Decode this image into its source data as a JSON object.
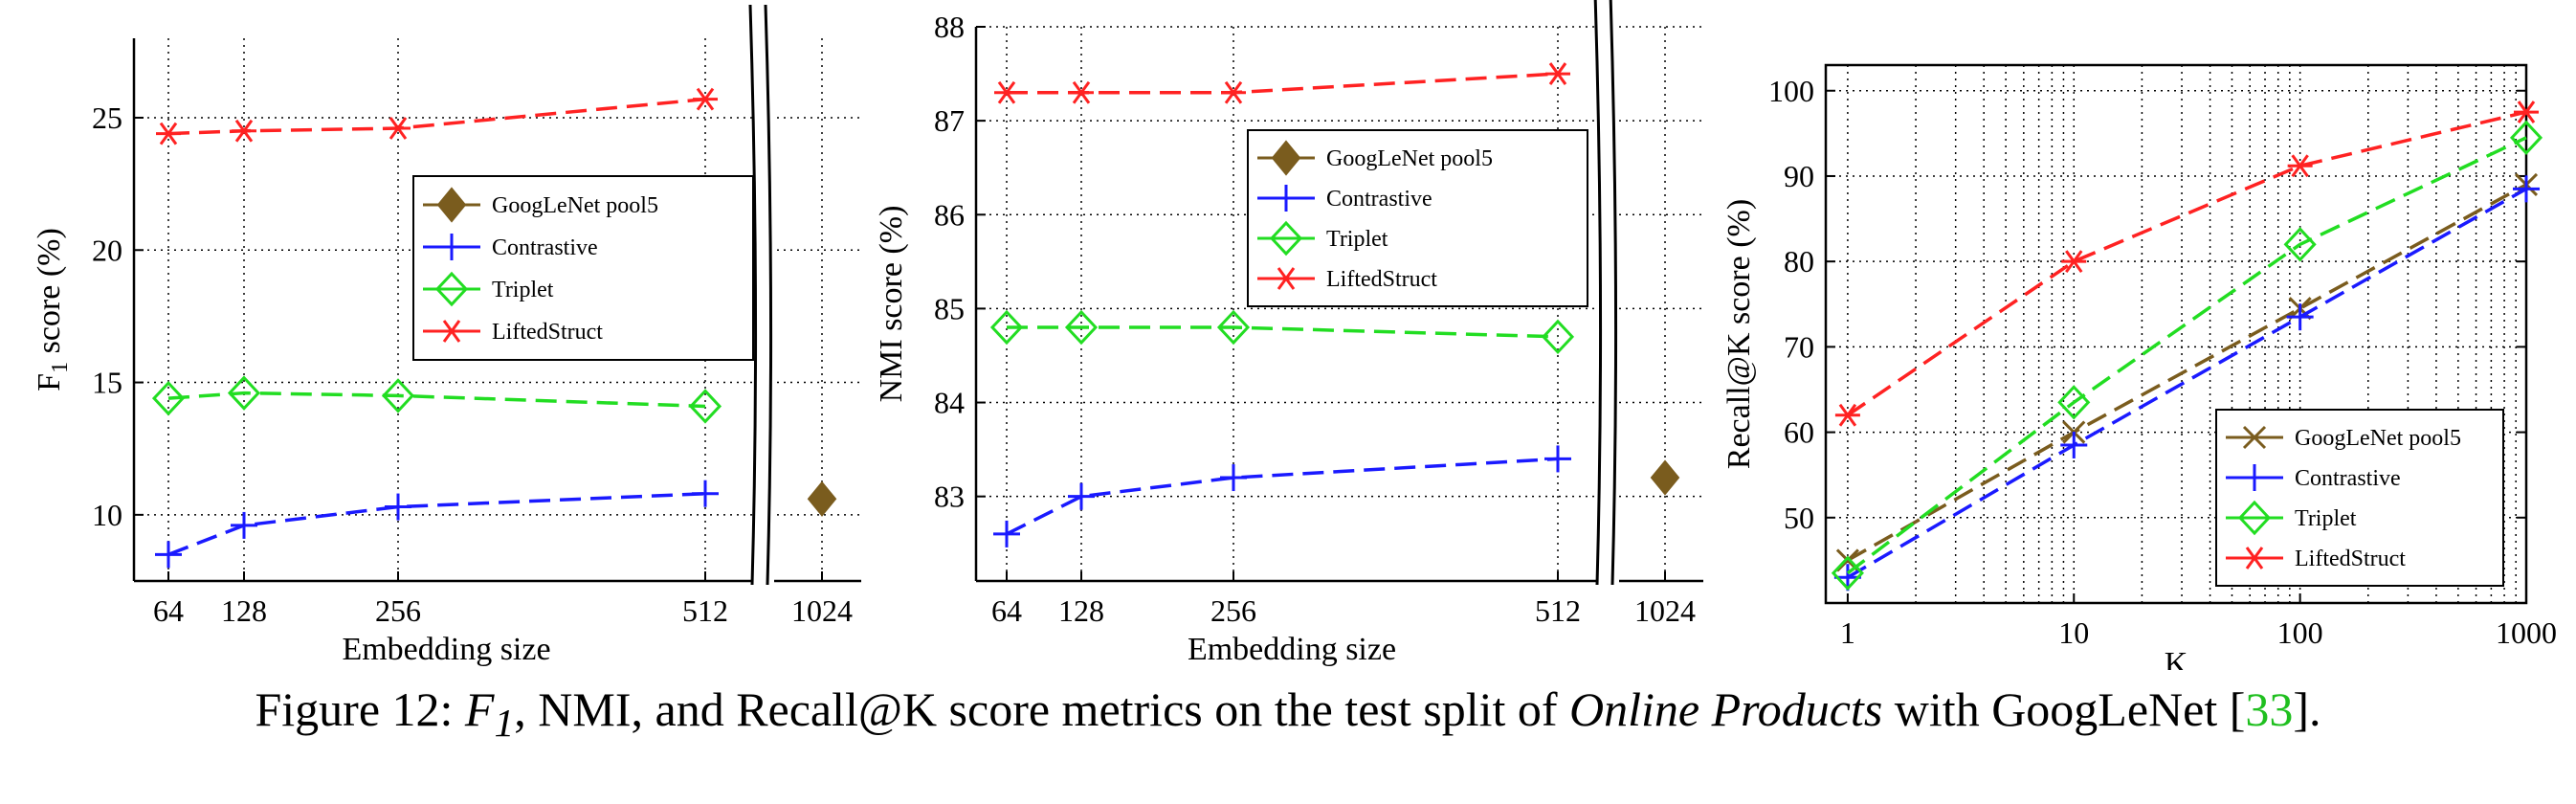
{
  "chart_data": [
    {
      "type": "line",
      "xlabel": "Embedding size",
      "ylabel": "F",
      "ylabel_sub": "1",
      "ylabel_rest": " score (%)",
      "x_ticks": [
        "64",
        "128",
        "256",
        "512",
        "1024"
      ],
      "y_ticks": [
        "10",
        "15",
        "20",
        "25"
      ],
      "ylim": [
        7.5,
        28
      ],
      "grid": true,
      "axis_break": "between 512 and 1024",
      "legend_position": "center-right",
      "series": [
        {
          "name": "GoogLeNet pool5",
          "color": "#7a5c1e",
          "marker": "diamond-filled",
          "x": [
            "1024"
          ],
          "values": [
            10.6
          ]
        },
        {
          "name": "Contrastive",
          "color": "#1a1aff",
          "marker": "plus",
          "x": [
            "64",
            "128",
            "256",
            "512"
          ],
          "values": [
            8.5,
            9.6,
            10.3,
            10.8
          ]
        },
        {
          "name": "Triplet",
          "color": "#22dd22",
          "marker": "diamond-open",
          "x": [
            "64",
            "128",
            "256",
            "512"
          ],
          "values": [
            14.4,
            14.6,
            14.5,
            14.1
          ]
        },
        {
          "name": "LiftedStruct",
          "color": "#ff2222",
          "marker": "asterisk",
          "x": [
            "64",
            "128",
            "256",
            "512"
          ],
          "values": [
            24.4,
            24.5,
            24.6,
            25.7
          ]
        }
      ]
    },
    {
      "type": "line",
      "xlabel": "Embedding size",
      "ylabel": "NMI score (%)",
      "x_ticks": [
        "64",
        "128",
        "256",
        "512",
        "1024"
      ],
      "y_ticks": [
        "83",
        "84",
        "85",
        "86",
        "87",
        "88"
      ],
      "ylim": [
        82.1,
        88
      ],
      "grid": true,
      "axis_break": "between 512 and 1024",
      "legend_position": "top-right",
      "series": [
        {
          "name": "GoogLeNet pool5",
          "color": "#7a5c1e",
          "marker": "diamond-filled",
          "x": [
            "1024"
          ],
          "values": [
            83.2
          ]
        },
        {
          "name": "Contrastive",
          "color": "#1a1aff",
          "marker": "plus",
          "x": [
            "64",
            "128",
            "256",
            "512"
          ],
          "values": [
            82.6,
            83.0,
            83.2,
            83.4
          ]
        },
        {
          "name": "Triplet",
          "color": "#22dd22",
          "marker": "diamond-open",
          "x": [
            "64",
            "128",
            "256",
            "512"
          ],
          "values": [
            84.8,
            84.8,
            84.8,
            84.7
          ]
        },
        {
          "name": "LiftedStruct",
          "color": "#ff2222",
          "marker": "asterisk",
          "x": [
            "64",
            "128",
            "256",
            "512"
          ],
          "values": [
            87.3,
            87.3,
            87.3,
            87.5
          ]
        }
      ]
    },
    {
      "type": "line",
      "xlabel": "K",
      "ylabel": "Recall@K score (%)",
      "x_scale": "log",
      "x_ticks": [
        "1",
        "10",
        "100",
        "1000"
      ],
      "y_ticks": [
        "50",
        "60",
        "70",
        "80",
        "90",
        "100"
      ],
      "xlim": [
        0.8,
        1000
      ],
      "ylim": [
        40,
        103
      ],
      "grid": true,
      "legend_position": "bottom-right",
      "series": [
        {
          "name": "GoogLeNet pool5",
          "color": "#7a5c1e",
          "marker": "x",
          "x": [
            1,
            10,
            100,
            1000
          ],
          "values": [
            45,
            60,
            74.5,
            89
          ]
        },
        {
          "name": "Contrastive",
          "color": "#1a1aff",
          "marker": "plus",
          "x": [
            1,
            10,
            100,
            1000
          ],
          "values": [
            43,
            58.5,
            73.5,
            88.5
          ]
        },
        {
          "name": "Triplet",
          "color": "#22dd22",
          "marker": "diamond-open",
          "x": [
            1,
            10,
            100,
            1000
          ],
          "values": [
            43.5,
            63.5,
            82,
            94.5
          ]
        },
        {
          "name": "LiftedStruct",
          "color": "#ff2222",
          "marker": "asterisk",
          "x": [
            1,
            10,
            100,
            1000
          ],
          "values": [
            62,
            80,
            91.2,
            97.5
          ]
        }
      ]
    }
  ],
  "caption": {
    "prefix": "Figure 12: ",
    "f_symbol": "F",
    "f_sub": "1",
    "middle": ", NMI, and Recall@K score metrics on the test split of ",
    "italic": "Online Products",
    "suffix": " with GoogLeNet [",
    "ref": "33",
    "end": "]."
  }
}
